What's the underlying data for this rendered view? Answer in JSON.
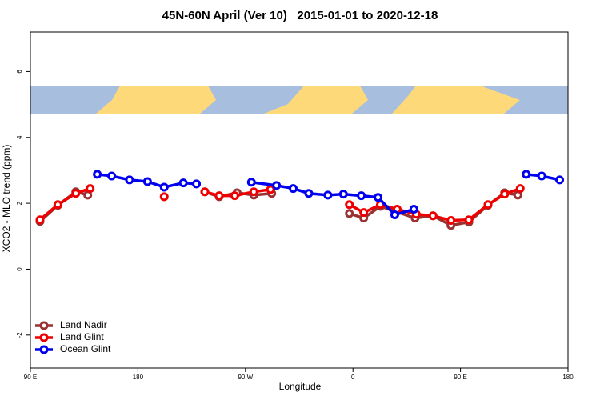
{
  "chart_data": {
    "type": "line",
    "title": "45N-60N April (Ver 10)   2015-01-01 to 2020-12-18",
    "xlabel": "Longitude",
    "ylabel": "XCO2 - MLO trend (ppm)",
    "xlim": [
      90,
      540
    ],
    "ylim": [
      -3,
      7.2
    ],
    "xticks": [
      {
        "value": 90,
        "label": "90 E"
      },
      180,
      {
        "value": 270,
        "label": "90 W"
      },
      {
        "value": 360,
        "label": "0"
      },
      {
        "value": 450,
        "label": "90 E"
      },
      {
        "value": 540,
        "label": "180"
      }
    ],
    "yticks": [
      -2,
      0,
      2,
      4,
      6
    ],
    "legend": "bottom-left",
    "series": [
      {
        "name": "Land Nadir",
        "color": "#993333",
        "x": [
          98,
          113,
          128,
          138,
          null,
          236,
          248,
          263,
          277,
          292,
          null,
          357,
          369,
          383,
          412,
          427,
          442,
          457,
          473,
          487,
          498
        ],
        "values": [
          1.45,
          1.94,
          2.35,
          2.25,
          null,
          2.35,
          2.2,
          2.32,
          2.25,
          2.3,
          null,
          1.69,
          1.55,
          1.91,
          1.55,
          1.62,
          1.33,
          1.43,
          1.94,
          2.32,
          2.25
        ]
      },
      {
        "name": "Land Glint",
        "color": "#ee0000",
        "x": [
          98,
          113,
          128,
          140,
          null,
          202,
          null,
          236,
          248,
          261,
          277,
          291,
          null,
          357,
          369,
          383,
          397,
          413,
          427,
          442,
          457,
          473,
          487,
          500
        ],
        "values": [
          1.5,
          1.96,
          2.3,
          2.45,
          null,
          2.2,
          null,
          2.35,
          2.23,
          2.23,
          2.35,
          2.42,
          null,
          1.96,
          1.72,
          1.96,
          1.82,
          1.67,
          1.62,
          1.48,
          1.5,
          1.96,
          2.28,
          2.45
        ]
      },
      {
        "name": "Ocean Glint",
        "color": "#0000ee",
        "x": [
          146,
          158,
          173,
          188,
          202,
          218,
          229,
          null,
          275,
          296,
          310,
          323,
          339,
          352,
          367,
          381,
          395,
          411,
          null,
          505,
          518,
          533
        ],
        "values": [
          2.88,
          2.83,
          2.71,
          2.66,
          2.49,
          2.62,
          2.59,
          null,
          2.64,
          2.54,
          2.45,
          2.3,
          2.25,
          2.28,
          2.23,
          2.18,
          1.65,
          1.82,
          null,
          2.88,
          2.83,
          2.71
        ]
      }
    ]
  }
}
